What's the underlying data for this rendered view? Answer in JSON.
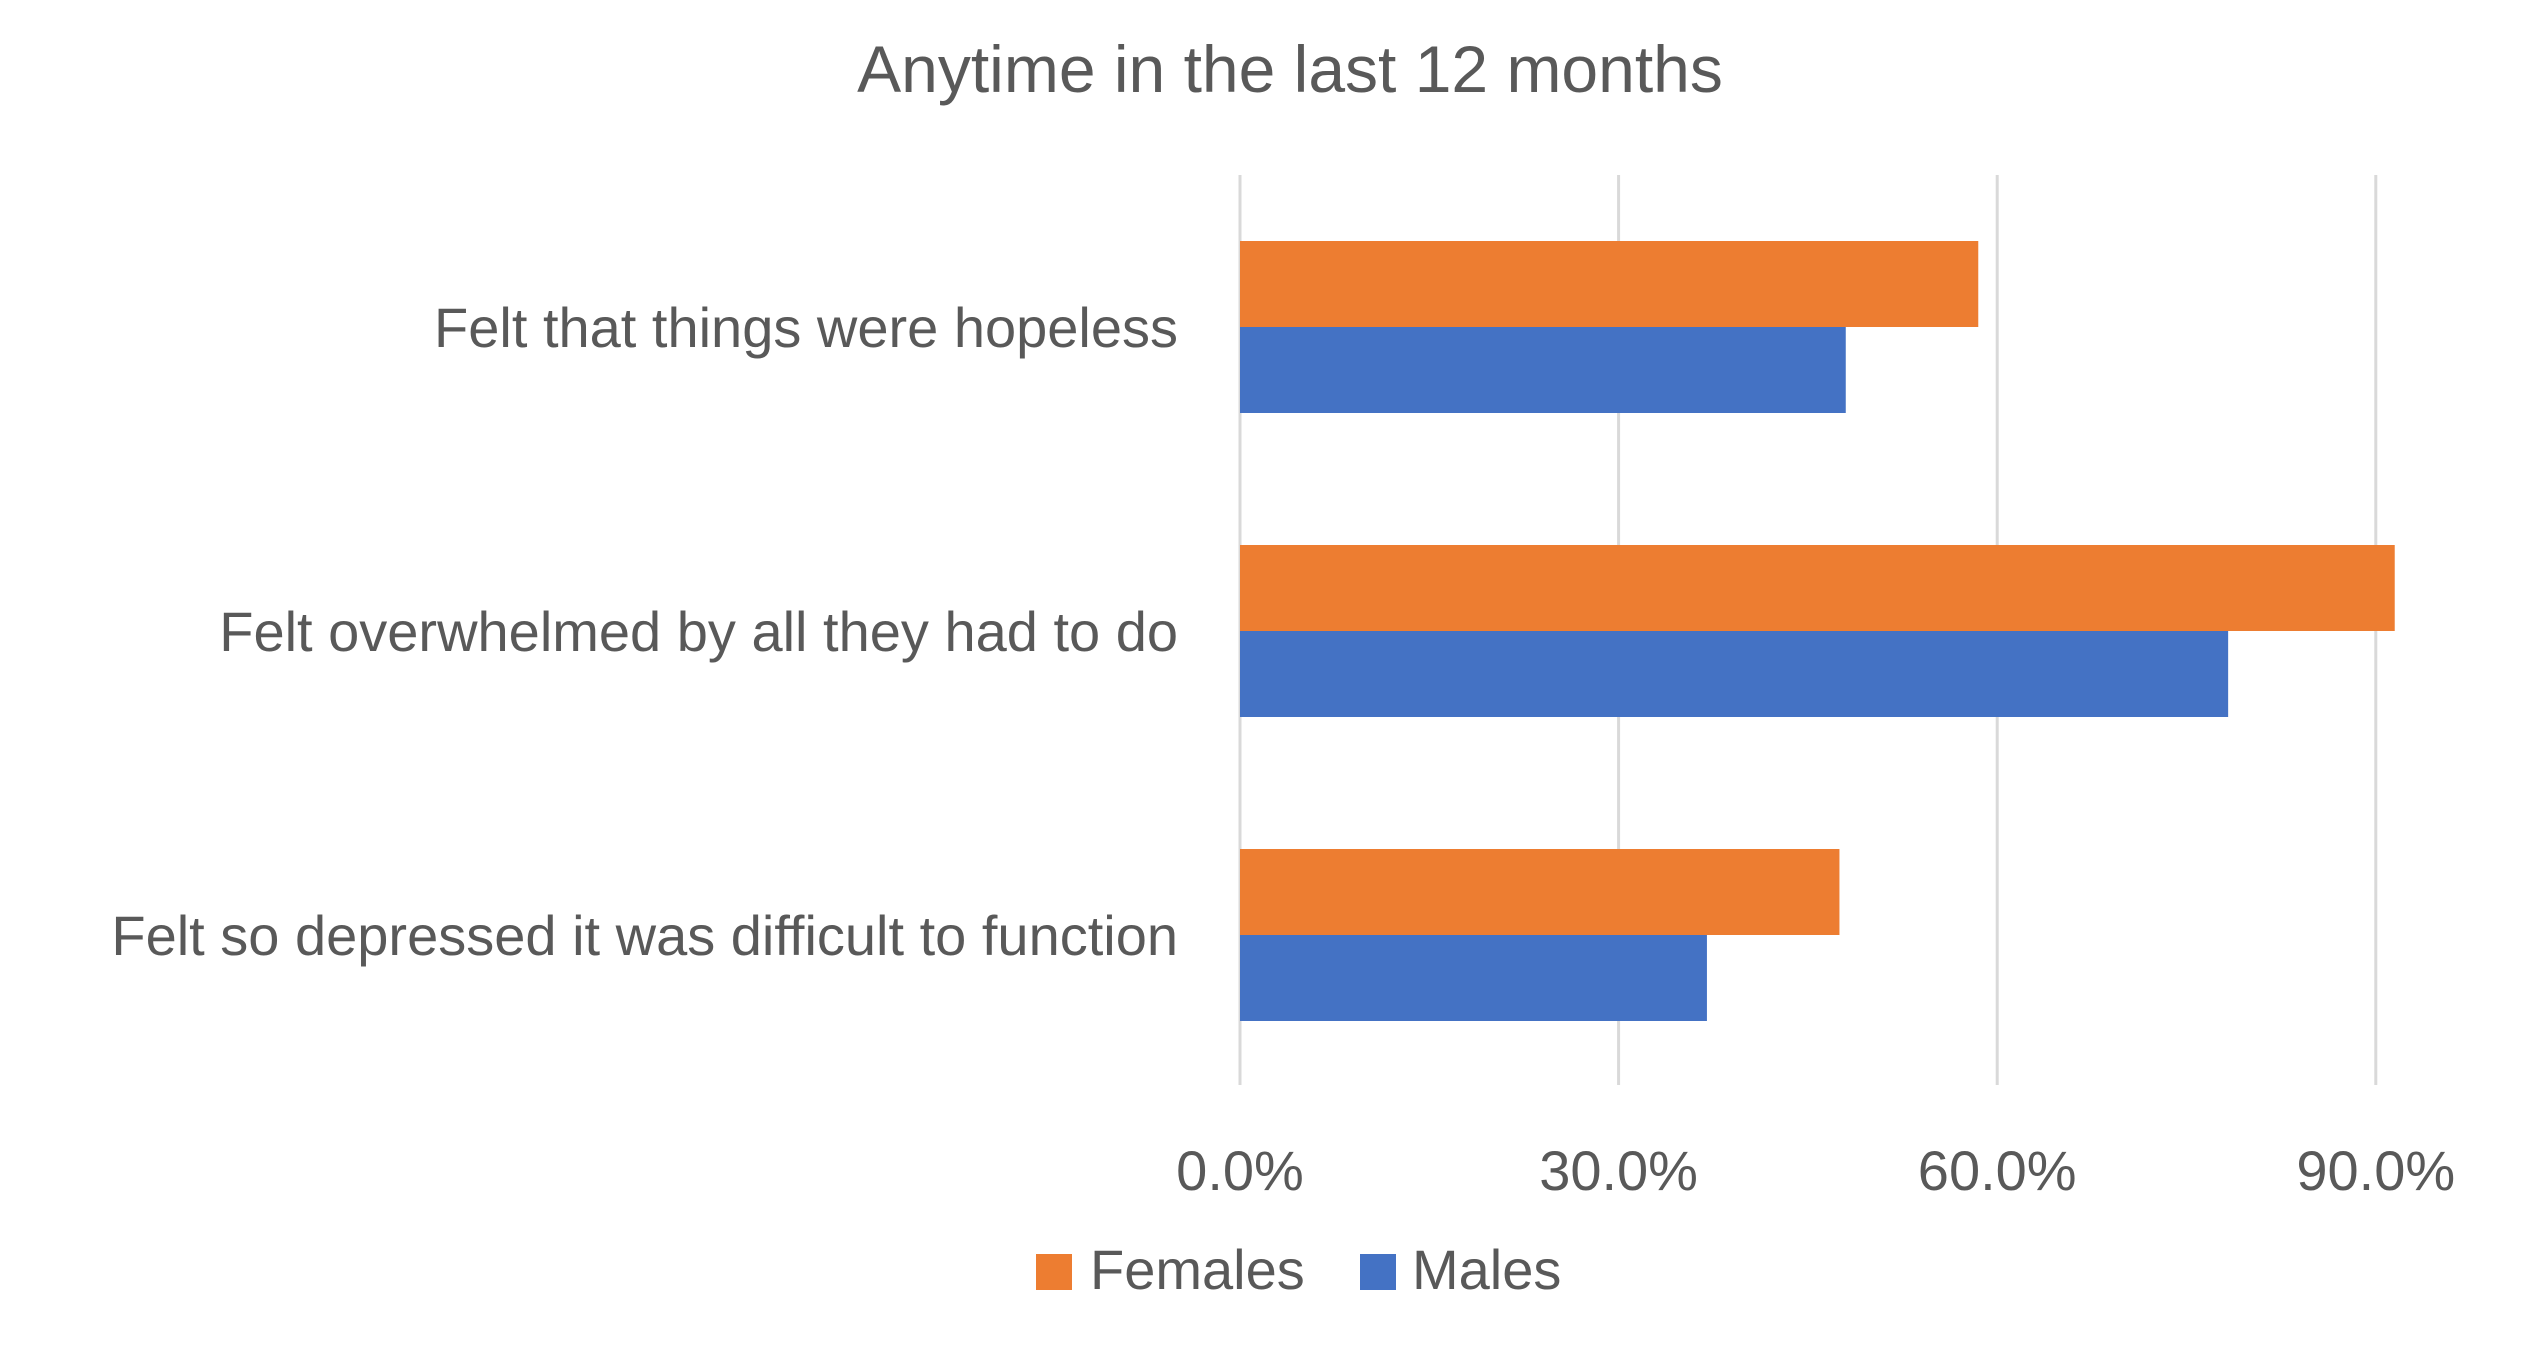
{
  "chart_data": {
    "type": "bar",
    "orientation": "horizontal",
    "title": "Anytime in the last 12 months",
    "categories": [
      "Felt that things were hopeless",
      "Felt overwhelmed by all they had to do",
      "Felt so depressed it was difficult to function"
    ],
    "series": [
      {
        "name": "Females",
        "color": "#ED7D31",
        "values": [
          58.5,
          91.5,
          47.5
        ]
      },
      {
        "name": "Males",
        "color": "#4472C4",
        "values": [
          48.0,
          78.3,
          37.0
        ]
      }
    ],
    "xlim": [
      0,
      100
    ],
    "xticks": [
      {
        "value": 0,
        "label": "0.0%"
      },
      {
        "value": 30,
        "label": "30.0%"
      },
      {
        "value": 60,
        "label": "60.0%"
      },
      {
        "value": 90,
        "label": "90.0%"
      }
    ],
    "grid": true,
    "legend_position": "bottom",
    "gridline_color": "#D9D9D9"
  }
}
